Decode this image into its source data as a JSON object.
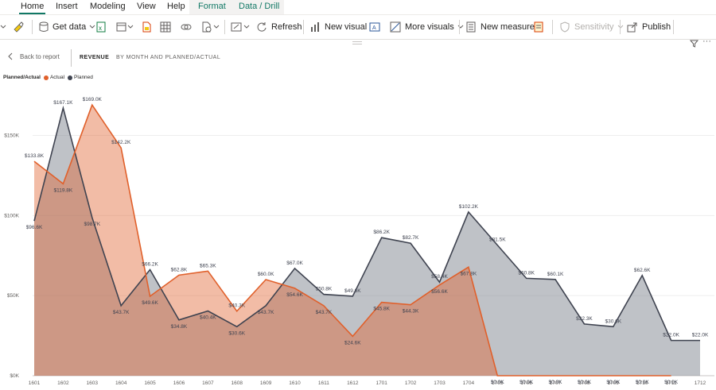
{
  "tabs": {
    "home": "Home",
    "insert": "Insert",
    "modeling": "Modeling",
    "view": "View",
    "help": "Help",
    "format": "Format",
    "data_drill": "Data / Drill"
  },
  "ribbon": {
    "get_data": "Get data",
    "refresh": "Refresh",
    "new_visual": "New visual",
    "more_visuals": "More visuals",
    "new_measure": "New measure",
    "sensitivity": "Sensitivity",
    "publish": "Publish"
  },
  "report": {
    "back_label": "Back to report",
    "title": "REVENUE",
    "subtitle": "BY MONTH AND PLANNED/ACTUAL"
  },
  "legend": {
    "title": "Planned/Actual",
    "items": [
      {
        "label": "Actual",
        "color": "#e0602b"
      },
      {
        "label": "Planned",
        "color": "#3f4350"
      }
    ]
  },
  "chart_data": {
    "type": "area",
    "categories": [
      "1601",
      "1602",
      "1603",
      "1604",
      "1605",
      "1606",
      "1607",
      "1608",
      "1609",
      "1610",
      "1611",
      "1612",
      "1701",
      "1702",
      "1703",
      "1704",
      "1705",
      "1706",
      "1707",
      "1708",
      "1709",
      "1710",
      "1711",
      "1712"
    ],
    "y_ticks": [
      0,
      50,
      100,
      150
    ],
    "y_tick_labels": [
      "$0K",
      "$50K",
      "$100K",
      "$150K"
    ],
    "ylim": [
      0,
      180
    ],
    "grid": true,
    "series": [
      {
        "name": "Actual",
        "color": "#e0602b",
        "fill": "#e0602b",
        "values": [
          133.8,
          119.8,
          169.0,
          142.2,
          49.6,
          62.8,
          65.3,
          40.3,
          60.0,
          54.6,
          43.7,
          24.6,
          45.8,
          44.3,
          56.6,
          67.8,
          0.0,
          0.0,
          0.0,
          0.0,
          0.0,
          0.0,
          0.0,
          null
        ],
        "labels": [
          "$133.8K",
          "$119.8K",
          "$169.0K",
          "$142.2K",
          "$49.6K",
          "$62.8K",
          "$65.3K",
          "$40.3K",
          "$60.0K",
          "$54.6K",
          "$43.7K",
          "$24.6K",
          "$45.8K",
          "$44.3K",
          "$56.6K",
          "$67.8K",
          "$0.0K",
          "$0.0K",
          "$0.0K",
          "$0.0K",
          "$0.0K",
          "$0.0K",
          "$0.0K",
          ""
        ]
      },
      {
        "name": "Planned",
        "color": "#3f4350",
        "fill": "#8a8f99",
        "values": [
          96.6,
          167.1,
          98.7,
          43.7,
          66.2,
          34.8,
          40.4,
          30.6,
          43.7,
          67.0,
          50.8,
          49.6,
          86.2,
          82.7,
          58.4,
          102.2,
          81.5,
          60.8,
          60.1,
          32.3,
          30.6,
          62.6,
          22.0,
          22.0
        ],
        "labels": [
          "$96.6K",
          "$167.1K",
          "$98.7K",
          "$43.7K",
          "$66.2K",
          "$34.8K",
          "$40.4K",
          "$30.6K",
          "$43.7K",
          "$67.0K",
          "$50.8K",
          "$49.6K",
          "$86.2K",
          "$82.7K",
          "$58.4K",
          "$102.2K",
          "$81.5K",
          "$60.8K",
          "$60.1K",
          "$32.3K",
          "$30.6K",
          "$62.6K",
          "$22.0K",
          "$22.0K"
        ]
      }
    ]
  }
}
